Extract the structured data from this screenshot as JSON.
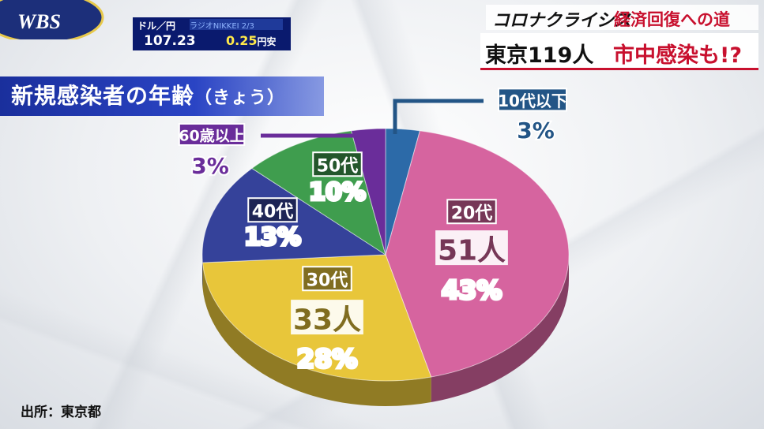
{
  "logo": {
    "text": "WBS"
  },
  "fx": {
    "label": "ドル／円",
    "ticker": "ラジオNIKKEI 2/3",
    "value": "107.23",
    "change": "0.25",
    "change_unit": "円安"
  },
  "program": {
    "series": "コロナクライシス",
    "subtitle": "経済回復への道"
  },
  "headline": {
    "main": "東京119人",
    "accent": "市中感染も!?"
  },
  "source": "出所：東京都",
  "chart_data": {
    "type": "pie",
    "title": "新規感染者の年齢",
    "title_suffix": "（きょう）",
    "slices": [
      {
        "label": "10代以下",
        "value": 3,
        "pct_label": "3%",
        "count_label": "",
        "color": "#2c6aa8"
      },
      {
        "label": "20代",
        "value": 43,
        "pct_label": "43%",
        "count_label": "51人",
        "color": "#d6649f"
      },
      {
        "label": "30代",
        "value": 28,
        "pct_label": "28%",
        "count_label": "33人",
        "color": "#e8c63a"
      },
      {
        "label": "40代",
        "value": 13,
        "pct_label": "13%",
        "count_label": "",
        "color": "#35429a"
      },
      {
        "label": "50代",
        "value": 10,
        "pct_label": "10%",
        "count_label": "",
        "color": "#3f9d4e"
      },
      {
        "label": "60歳以上",
        "value": 3,
        "pct_label": "3%",
        "count_label": "",
        "color": "#6a2d9a"
      }
    ]
  }
}
